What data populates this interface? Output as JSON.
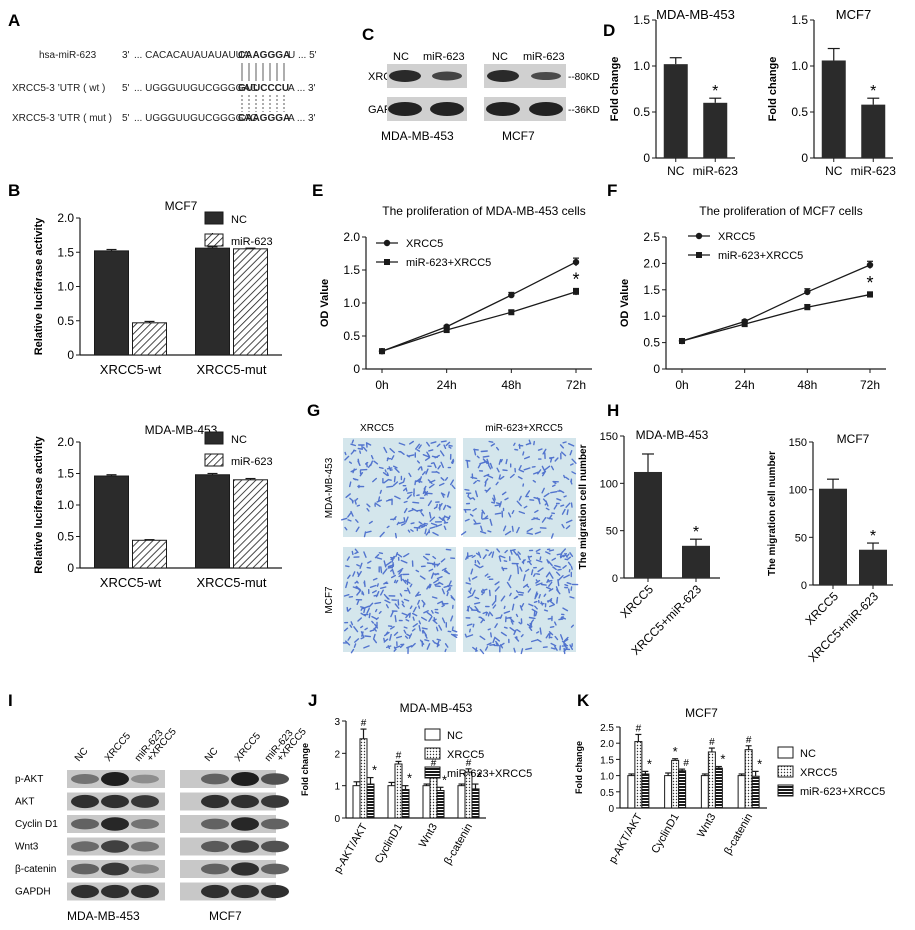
{
  "panels": {
    "A": "A",
    "B": "B",
    "C": "C",
    "D": "D",
    "E": "E",
    "F": "F",
    "G": "G",
    "H": "H",
    "I": "I",
    "J": "J",
    "K": "K"
  },
  "colors": {
    "dark": "#2b2b2b",
    "line": "#1a1a1a",
    "blot_bg": "#c8c8c8",
    "micro_bg": "#d4e6ec",
    "cell": "#3b5fc9"
  },
  "panel_a": {
    "rows": [
      {
        "label": "hsa-miR-623",
        "prime5": "3'",
        "seq_pre": "... CACACAUAUAUAUUA",
        "seq_bold": "CAAGGGA",
        "seq_post": "U ... 5'"
      },
      {
        "label": "XRCC5-3 ’UTR ( wt )",
        "prime5": "5'",
        "seq_pre": "... UGGGUUGUCGGGGAC",
        "seq_bold": "GUUCCCU",
        "seq_post": "A ... 3'"
      },
      {
        "label": "XRCC5-3 ’UTR ( mut )",
        "prime5": "5'",
        "seq_pre": "... UGGGUUGUCGGGGAC",
        "seq_bold": "CAAGGGA",
        "seq_post": "A ... 3'"
      }
    ]
  },
  "panel_c": {
    "lane_labels": [
      "NC",
      "miR-623",
      "NC",
      "miR-623"
    ],
    "proteins": [
      "XRCC5",
      "GAPDH"
    ],
    "sizes": [
      "--80KD",
      "--36KD"
    ],
    "cell_lines": [
      "MDA-MB-453",
      "MCF7"
    ]
  },
  "panel_g": {
    "columns": [
      "XRCC5",
      "miR-623+XRCC5"
    ],
    "rows": [
      "MDA-MB-453",
      "MCF7"
    ]
  },
  "panel_i": {
    "lanes": [
      "NC",
      "XRCC5",
      "miR-623\n+XRCC5"
    ],
    "lane_line1": [
      "NC",
      "XRCC5",
      "miR-623"
    ],
    "lane_line2": [
      "",
      "",
      "+XRCC5"
    ],
    "proteins": [
      "p-AKT",
      "AKT",
      "Cyclin D1",
      "Wnt3",
      "β-catenin",
      "GAPDH"
    ],
    "cell_lines": [
      "MDA-MB-453",
      "MCF7"
    ]
  },
  "chart_data": [
    {
      "id": "D1",
      "type": "bar",
      "title": "MDA-MB-453",
      "ylabel": "Fold change",
      "categories": [
        "NC",
        "miR-623"
      ],
      "values": [
        1.02,
        0.6
      ],
      "errors": [
        0.07,
        0.05
      ],
      "ylim": [
        0,
        1.5
      ],
      "yticks": [
        0,
        0.5,
        1.0,
        1.5
      ],
      "sig": [
        "",
        "*"
      ]
    },
    {
      "id": "D2",
      "type": "bar",
      "title": "MCF7",
      "ylabel": "Fold change",
      "categories": [
        "NC",
        "miR-623"
      ],
      "values": [
        1.06,
        0.58
      ],
      "errors": [
        0.13,
        0.07
      ],
      "ylim": [
        0,
        1.5
      ],
      "yticks": [
        0,
        0.5,
        1.0,
        1.5
      ],
      "sig": [
        "",
        "*"
      ]
    },
    {
      "id": "B1",
      "type": "bar",
      "title": "MCF7",
      "ylabel": "Relative luciferase activity",
      "categories": [
        "XRCC5-wt",
        "XRCC5-mut"
      ],
      "series": [
        {
          "name": "NC",
          "values": [
            1.52,
            1.56
          ]
        },
        {
          "name": "miR-623",
          "values": [
            0.47,
            1.55
          ]
        }
      ],
      "errors": [
        [
          0.02,
          0.02
        ],
        [
          0.02,
          0.01
        ]
      ],
      "ylim": [
        0,
        2.0
      ],
      "yticks": [
        0,
        0.5,
        1.0,
        1.5,
        2.0
      ],
      "sig": [
        [
          "",
          "*"
        ],
        [
          "",
          ""
        ]
      ],
      "legend": "top-right"
    },
    {
      "id": "B2",
      "type": "bar",
      "title": "MDA-MB-453",
      "ylabel": "Relative luciferase activity",
      "categories": [
        "XRCC5-wt",
        "XRCC5-mut"
      ],
      "series": [
        {
          "name": "NC",
          "values": [
            1.46,
            1.48
          ]
        },
        {
          "name": "miR-623",
          "values": [
            0.44,
            1.4
          ]
        }
      ],
      "errors": [
        [
          0.02,
          0.02
        ],
        [
          0.01,
          0.02
        ]
      ],
      "ylim": [
        0,
        2.0
      ],
      "yticks": [
        0,
        0.5,
        1.0,
        1.5,
        2.0
      ],
      "sig": [
        [
          "",
          "*"
        ],
        [
          "",
          ""
        ]
      ],
      "legend": "top-right"
    },
    {
      "id": "E",
      "type": "line",
      "title": "The proliferation of MDA-MB-453 cells",
      "ylabel": "OD Value",
      "x": [
        "0h",
        "24h",
        "48h",
        "72h"
      ],
      "series": [
        {
          "name": "XRCC5",
          "values": [
            0.27,
            0.64,
            1.12,
            1.62
          ],
          "errors": [
            0.01,
            0.02,
            0.04,
            0.06
          ]
        },
        {
          "name": "miR-623+XRCC5",
          "values": [
            0.27,
            0.59,
            0.86,
            1.17
          ],
          "errors": [
            0.01,
            0.02,
            0.03,
            0.05
          ]
        }
      ],
      "ylim": [
        0,
        2.0
      ],
      "yticks": [
        0,
        0.5,
        1.0,
        1.5,
        2.0
      ],
      "sig_label": "*",
      "legend": "top-left"
    },
    {
      "id": "F",
      "type": "line",
      "title": "The proliferation of MCF7 cells",
      "ylabel": "OD Value",
      "x": [
        "0h",
        "24h",
        "48h",
        "72h"
      ],
      "series": [
        {
          "name": "XRCC5",
          "values": [
            0.53,
            0.9,
            1.46,
            1.97
          ],
          "errors": [
            0.01,
            0.03,
            0.06,
            0.07
          ]
        },
        {
          "name": "miR-623+XRCC5",
          "values": [
            0.53,
            0.85,
            1.17,
            1.41
          ],
          "errors": [
            0.01,
            0.02,
            0.05,
            0.05
          ]
        }
      ],
      "ylim": [
        0,
        2.5
      ],
      "yticks": [
        0,
        0.5,
        1.0,
        1.5,
        2.0,
        2.5
      ],
      "sig_label": "*",
      "legend": "top-left"
    },
    {
      "id": "H1",
      "type": "bar",
      "title": "MDA-MB-453",
      "ylabel": "The migration cell number",
      "categories": [
        "XRCC5",
        "XRCC5+miR-623"
      ],
      "values": [
        112,
        34
      ],
      "errors": [
        19,
        7
      ],
      "ylim": [
        0,
        150
      ],
      "yticks": [
        0,
        50,
        100,
        150
      ],
      "sig": [
        "",
        "*"
      ]
    },
    {
      "id": "H2",
      "type": "bar",
      "title": "MCF7",
      "ylabel": "The migration cell number",
      "categories": [
        "XRCC5",
        "XRCC5+miR-623"
      ],
      "values": [
        101,
        37
      ],
      "errors": [
        10,
        7
      ],
      "ylim": [
        0,
        150
      ],
      "yticks": [
        0,
        50,
        100,
        150
      ],
      "sig": [
        "",
        "*"
      ]
    },
    {
      "id": "J",
      "type": "bar",
      "title": "MDA-MB-453",
      "ylabel": "Fold change",
      "categories": [
        "p-AKT/AKT",
        "CyclinD1",
        "Wnt3",
        "β-catenin"
      ],
      "series": [
        {
          "name": "NC",
          "values": [
            1.0,
            1.0,
            1.0,
            1.0
          ]
        },
        {
          "name": "XRCC5",
          "values": [
            2.45,
            1.67,
            1.43,
            1.42
          ]
        },
        {
          "name": "miR-623+XRCC5",
          "values": [
            1.05,
            0.88,
            0.85,
            0.9
          ]
        }
      ],
      "errors": [
        [
          0.12,
          0.1,
          0.05,
          0.05
        ],
        [
          0.3,
          0.08,
          0.08,
          0.1
        ],
        [
          0.2,
          0.12,
          0.1,
          0.15
        ]
      ],
      "ylim": [
        0,
        3
      ],
      "yticks": [
        0,
        1,
        2,
        3
      ],
      "marks": [
        [
          "#",
          "*"
        ],
        [
          "#",
          "*"
        ],
        [
          "#",
          "*"
        ],
        [
          "#",
          "*"
        ]
      ],
      "legend": "top-right"
    },
    {
      "id": "K",
      "type": "bar",
      "title": "MCF7",
      "ylabel": "Fold change",
      "categories": [
        "p-AKT/AKT",
        "CyclinD1",
        "Wnt3",
        "β-catenin"
      ],
      "series": [
        {
          "name": "NC",
          "values": [
            1.0,
            1.0,
            1.0,
            1.0
          ]
        },
        {
          "name": "XRCC5",
          "values": [
            2.05,
            1.47,
            1.73,
            1.8
          ]
        },
        {
          "name": "miR-623+XRCC5",
          "values": [
            1.05,
            1.15,
            1.23,
            0.98
          ]
        }
      ],
      "errors": [
        [
          0.05,
          0.08,
          0.05,
          0.05
        ],
        [
          0.22,
          0.05,
          0.12,
          0.12
        ],
        [
          0.08,
          0.05,
          0.05,
          0.15
        ]
      ],
      "ylim": [
        0,
        2.5
      ],
      "yticks": [
        0,
        0.5,
        1.0,
        1.5,
        2.0,
        2.5
      ],
      "marks": [
        [
          "#",
          "*"
        ],
        [
          "*",
          "#"
        ],
        [
          "#",
          "*"
        ],
        [
          "#",
          "*"
        ]
      ],
      "legend": "right"
    }
  ]
}
